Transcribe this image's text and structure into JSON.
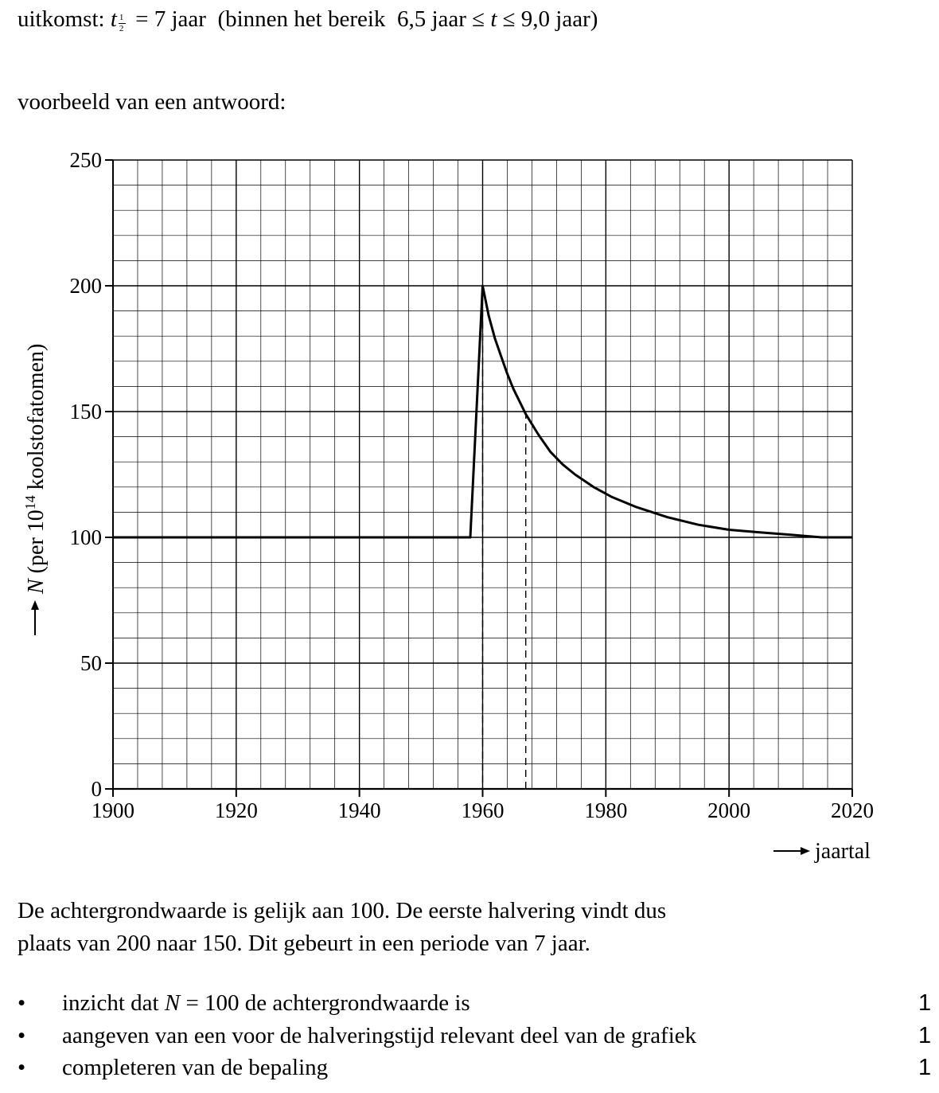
{
  "uitkomst": {
    "label": "uitkomst:",
    "symbol": "t",
    "sub_num": "1",
    "sub_den": "2",
    "equals": "= 7 jaar",
    "range_open": "(binnen het bereik",
    "range_value": "6,5 jaar ≤",
    "range_var": "t",
    "range_end": "≤ 9,0 jaar",
    "range_close": ")"
  },
  "voorbeeld": "voorbeeld van een antwoord:",
  "chart_data": {
    "type": "line",
    "ylabel_var": "N",
    "ylabel_text": "(per 10",
    "ylabel_exp": "14",
    "ylabel_tail": " koolstofatomen)",
    "xlabel": "jaartal",
    "xlim": [
      1900,
      2020
    ],
    "ylim": [
      0,
      250
    ],
    "grid": true,
    "x_ticks": [
      "1900",
      "1920",
      "1940",
      "1960",
      "1980",
      "2000",
      "2020"
    ],
    "y_ticks": [
      "0",
      "50",
      "100",
      "150",
      "200",
      "250"
    ],
    "series": [
      {
        "x": [
          1900,
          1958,
          1960,
          1961,
          1962,
          1963,
          1964,
          1965,
          1966,
          1967,
          1969,
          1971,
          1973,
          1975,
          1978,
          1981,
          1985,
          1990,
          1995,
          2000,
          2005,
          2010,
          2015,
          2016,
          2020
        ],
        "y": [
          100,
          100,
          200,
          188,
          179,
          172,
          165,
          159,
          154,
          149,
          141,
          134,
          129,
          125,
          120,
          116,
          112,
          108,
          105,
          103,
          102,
          101,
          100,
          100,
          100
        ]
      }
    ],
    "guides": [
      {
        "x": 1960,
        "y": 200
      },
      {
        "x": 1967,
        "y": 150
      }
    ]
  },
  "explanation": [
    "De achtergrondwaarde is gelijk aan 100. De eerste halvering vindt dus",
    "plaats van 200 naar 150. Dit gebeurt in een periode van 7 jaar."
  ],
  "criteria": [
    {
      "bullet": "•",
      "pre": "inzicht dat ",
      "var": "N",
      "post": " = 100 de achtergrondwaarde is",
      "score": "1"
    },
    {
      "bullet": "•",
      "pre": "aangeven van een voor de halveringstijd relevant deel van de grafiek",
      "var": "",
      "post": "",
      "score": "1"
    },
    {
      "bullet": "•",
      "pre": "completeren van de bepaling",
      "var": "",
      "post": "",
      "score": "1"
    }
  ]
}
